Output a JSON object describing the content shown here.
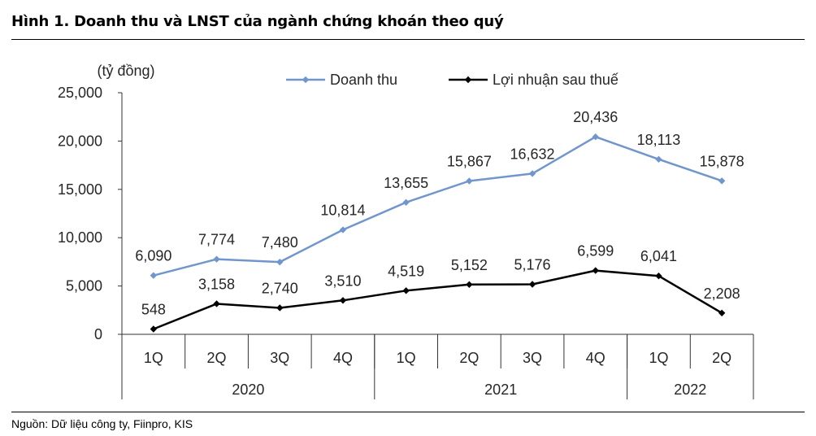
{
  "title": "Hình 1. Doanh thu và LNST của ngành chứng khoán theo quý",
  "source": "Nguồn: Dữ liệu công ty, Fiinpro, KIS",
  "chart_data": {
    "type": "line",
    "unit_label": "(tỷ đồng)",
    "categories": [
      "1Q",
      "2Q",
      "3Q",
      "4Q",
      "1Q",
      "2Q",
      "3Q",
      "4Q",
      "1Q",
      "2Q"
    ],
    "groups": [
      {
        "label": "2020",
        "count": 4
      },
      {
        "label": "2021",
        "count": 4
      },
      {
        "label": "2022",
        "count": 2
      }
    ],
    "ylim": [
      0,
      25000
    ],
    "yticks": [
      0,
      5000,
      10000,
      15000,
      20000,
      25000
    ],
    "ytick_labels": [
      "0",
      "5,000",
      "10,000",
      "15,000",
      "20,000",
      "25,000"
    ],
    "legend_position": "top",
    "series": [
      {
        "name": "Doanh thu",
        "color": "#7096cc",
        "values": [
          6090,
          7774,
          7480,
          10814,
          13655,
          15867,
          16632,
          20436,
          18113,
          15878
        ],
        "labels": [
          "6,090",
          "7,774",
          "7,480",
          "10,814",
          "13,655",
          "15,867",
          "16,632",
          "20,436",
          "18,113",
          "15,878"
        ]
      },
      {
        "name": "Lợi nhuận sau thuế",
        "color": "#000000",
        "values": [
          548,
          3158,
          2740,
          3510,
          4519,
          5152,
          5176,
          6599,
          6041,
          2208
        ],
        "labels": [
          "548",
          "3,158",
          "2,740",
          "3,510",
          "4,519",
          "5,152",
          "5,176",
          "6,599",
          "6,041",
          "2,208"
        ]
      }
    ]
  }
}
